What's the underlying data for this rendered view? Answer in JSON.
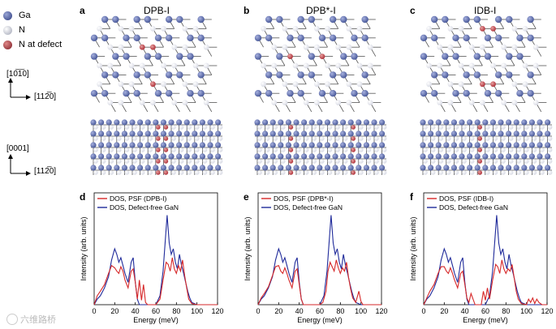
{
  "legend": {
    "items": [
      {
        "label": "Ga",
        "color": "#4a5a9a"
      },
      {
        "label": "N",
        "color": "#d9dbe5"
      },
      {
        "label": "N at defect",
        "color": "#b0343c"
      }
    ]
  },
  "axes_glyphs": {
    "top_vertical": "[10̅1̅0]",
    "top_horizontal": "[112̅0]",
    "bottom_vertical": "[0001]",
    "bottom_horizontal": "[112̅0]"
  },
  "panels": [
    {
      "letter": "a",
      "title": "DPB-I"
    },
    {
      "letter": "b",
      "title": "DPB*-I"
    },
    {
      "letter": "c",
      "title": "IDB-I"
    },
    {
      "letter": "d"
    },
    {
      "letter": "e"
    },
    {
      "letter": "f"
    }
  ],
  "watermark": "六维路桥",
  "colors": {
    "psf": "#d62728",
    "defect_free": "#1f2a9a",
    "ga": "#4a5a9a",
    "n": "#d9dbe5",
    "defect": "#b0343c"
  },
  "chart_data": [
    {
      "type": "line",
      "panel": "d",
      "xlabel": "Energy (meV)",
      "ylabel": "Intensity (arb. units)",
      "xlim": [
        0,
        120
      ],
      "xticks": [
        "0",
        "20",
        "40",
        "60",
        "80",
        "100",
        "120"
      ],
      "series": [
        {
          "name": "DOS, PSF (DPB-I)",
          "color": "#d62728",
          "x": [
            0,
            3,
            6,
            10,
            14,
            17,
            20,
            22,
            24,
            26,
            28,
            30,
            33,
            36,
            38,
            40,
            42,
            44,
            46,
            48,
            50,
            52,
            60,
            64,
            67,
            70,
            72,
            74,
            76,
            78,
            80,
            82,
            84,
            86,
            88,
            90,
            92,
            95,
            100,
            110,
            120
          ],
          "y": [
            0,
            0.08,
            0.12,
            0.18,
            0.28,
            0.35,
            0.33,
            0.3,
            0.28,
            0.34,
            0.3,
            0.22,
            0.15,
            0.3,
            0.32,
            0.2,
            0.05,
            0.22,
            0.04,
            0.18,
            0.02,
            0,
            0,
            0.05,
            0.22,
            0.38,
            0.36,
            0.3,
            0.42,
            0.32,
            0.28,
            0.35,
            0.3,
            0.4,
            0.26,
            0.15,
            0.05,
            0.01,
            0,
            0,
            0
          ]
        },
        {
          "name": "DOS, Defect-free GaN",
          "color": "#1f2a9a",
          "x": [
            0,
            3,
            6,
            10,
            14,
            17,
            20,
            22,
            24,
            26,
            28,
            30,
            33,
            36,
            38,
            40,
            42,
            44,
            50,
            60,
            64,
            67,
            69,
            71,
            73,
            75,
            77,
            79,
            81,
            83,
            85,
            87,
            89,
            91,
            93,
            95,
            100,
            110,
            120
          ],
          "y": [
            0,
            0.05,
            0.08,
            0.15,
            0.25,
            0.4,
            0.5,
            0.45,
            0.38,
            0.42,
            0.35,
            0.28,
            0.2,
            0.38,
            0.42,
            0.2,
            0.05,
            0,
            0,
            0,
            0.08,
            0.3,
            0.55,
            0.8,
            0.55,
            0.45,
            0.5,
            0.38,
            0.32,
            0.45,
            0.35,
            0.28,
            0.2,
            0.12,
            0.06,
            0.02,
            0,
            0,
            0
          ]
        }
      ]
    },
    {
      "type": "line",
      "panel": "e",
      "xlabel": "Energy (meV)",
      "ylabel": "Intensity (arb. units)",
      "xlim": [
        0,
        120
      ],
      "xticks": [
        "0",
        "20",
        "40",
        "60",
        "80",
        "100",
        "120"
      ],
      "series": [
        {
          "name": "DOS, PSF (DPB*-I)",
          "color": "#d62728",
          "x": [
            0,
            3,
            6,
            10,
            14,
            17,
            20,
            22,
            24,
            26,
            28,
            30,
            33,
            36,
            38,
            40,
            42,
            44,
            60,
            63,
            66,
            68,
            70,
            72,
            74,
            76,
            78,
            80,
            82,
            84,
            86,
            88,
            90,
            92,
            95,
            98,
            100,
            102,
            110,
            120
          ],
          "y": [
            0,
            0.06,
            0.1,
            0.16,
            0.26,
            0.34,
            0.35,
            0.3,
            0.28,
            0.33,
            0.28,
            0.22,
            0.15,
            0.3,
            0.32,
            0.18,
            0.05,
            0,
            0,
            0.02,
            0.12,
            0.3,
            0.38,
            0.34,
            0.3,
            0.4,
            0.33,
            0.28,
            0.33,
            0.3,
            0.38,
            0.24,
            0.14,
            0.06,
            0.02,
            0.12,
            0.03,
            0,
            0,
            0
          ]
        },
        {
          "name": "DOS, Defect-free GaN",
          "color": "#1f2a9a",
          "x": [
            0,
            3,
            6,
            10,
            14,
            17,
            20,
            22,
            24,
            26,
            28,
            30,
            33,
            36,
            38,
            40,
            42,
            44,
            50,
            60,
            64,
            67,
            69,
            71,
            73,
            75,
            77,
            79,
            81,
            83,
            85,
            87,
            89,
            91,
            93,
            95,
            100,
            110,
            120
          ],
          "y": [
            0,
            0.05,
            0.08,
            0.15,
            0.25,
            0.4,
            0.5,
            0.45,
            0.38,
            0.42,
            0.35,
            0.28,
            0.2,
            0.38,
            0.42,
            0.2,
            0.05,
            0,
            0,
            0,
            0.08,
            0.3,
            0.55,
            0.8,
            0.55,
            0.45,
            0.5,
            0.38,
            0.32,
            0.45,
            0.35,
            0.28,
            0.2,
            0.12,
            0.06,
            0.02,
            0,
            0,
            0
          ]
        }
      ]
    },
    {
      "type": "line",
      "panel": "f",
      "xlabel": "Energy (meV)",
      "ylabel": "Intensity (arb. units)",
      "xlim": [
        0,
        120
      ],
      "xticks": [
        "0",
        "20",
        "40",
        "60",
        "80",
        "100",
        "120"
      ],
      "series": [
        {
          "name": "DOS, PSF (IDB-I)",
          "color": "#d62728",
          "x": [
            0,
            3,
            6,
            10,
            14,
            17,
            20,
            22,
            24,
            26,
            28,
            30,
            33,
            36,
            38,
            40,
            42,
            44,
            46,
            50,
            56,
            58,
            60,
            62,
            64,
            67,
            70,
            72,
            74,
            76,
            78,
            80,
            82,
            84,
            86,
            88,
            90,
            92,
            95,
            100,
            102,
            104,
            106,
            108,
            110,
            112,
            115,
            120
          ],
          "y": [
            0,
            0.06,
            0.12,
            0.18,
            0.28,
            0.34,
            0.34,
            0.3,
            0.28,
            0.33,
            0.28,
            0.22,
            0.15,
            0.28,
            0.3,
            0.18,
            0.06,
            0.02,
            0.1,
            0,
            0,
            0.12,
            0.04,
            0.15,
            0.05,
            0.22,
            0.36,
            0.34,
            0.28,
            0.4,
            0.32,
            0.28,
            0.32,
            0.3,
            0.36,
            0.24,
            0.12,
            0.05,
            0.01,
            0,
            0.05,
            0.02,
            0.06,
            0.01,
            0.05,
            0.02,
            0,
            0
          ]
        },
        {
          "name": "DOS, Defect-free GaN",
          "color": "#1f2a9a",
          "x": [
            0,
            3,
            6,
            10,
            14,
            17,
            20,
            22,
            24,
            26,
            28,
            30,
            33,
            36,
            38,
            40,
            42,
            44,
            50,
            60,
            64,
            67,
            69,
            71,
            73,
            75,
            77,
            79,
            81,
            83,
            85,
            87,
            89,
            91,
            93,
            95,
            100,
            110,
            120
          ],
          "y": [
            0,
            0.05,
            0.08,
            0.15,
            0.25,
            0.4,
            0.5,
            0.45,
            0.38,
            0.42,
            0.35,
            0.28,
            0.2,
            0.38,
            0.42,
            0.2,
            0.05,
            0,
            0,
            0,
            0.08,
            0.3,
            0.55,
            0.8,
            0.55,
            0.45,
            0.5,
            0.38,
            0.32,
            0.45,
            0.35,
            0.28,
            0.2,
            0.12,
            0.06,
            0.02,
            0,
            0,
            0
          ]
        }
      ]
    }
  ]
}
